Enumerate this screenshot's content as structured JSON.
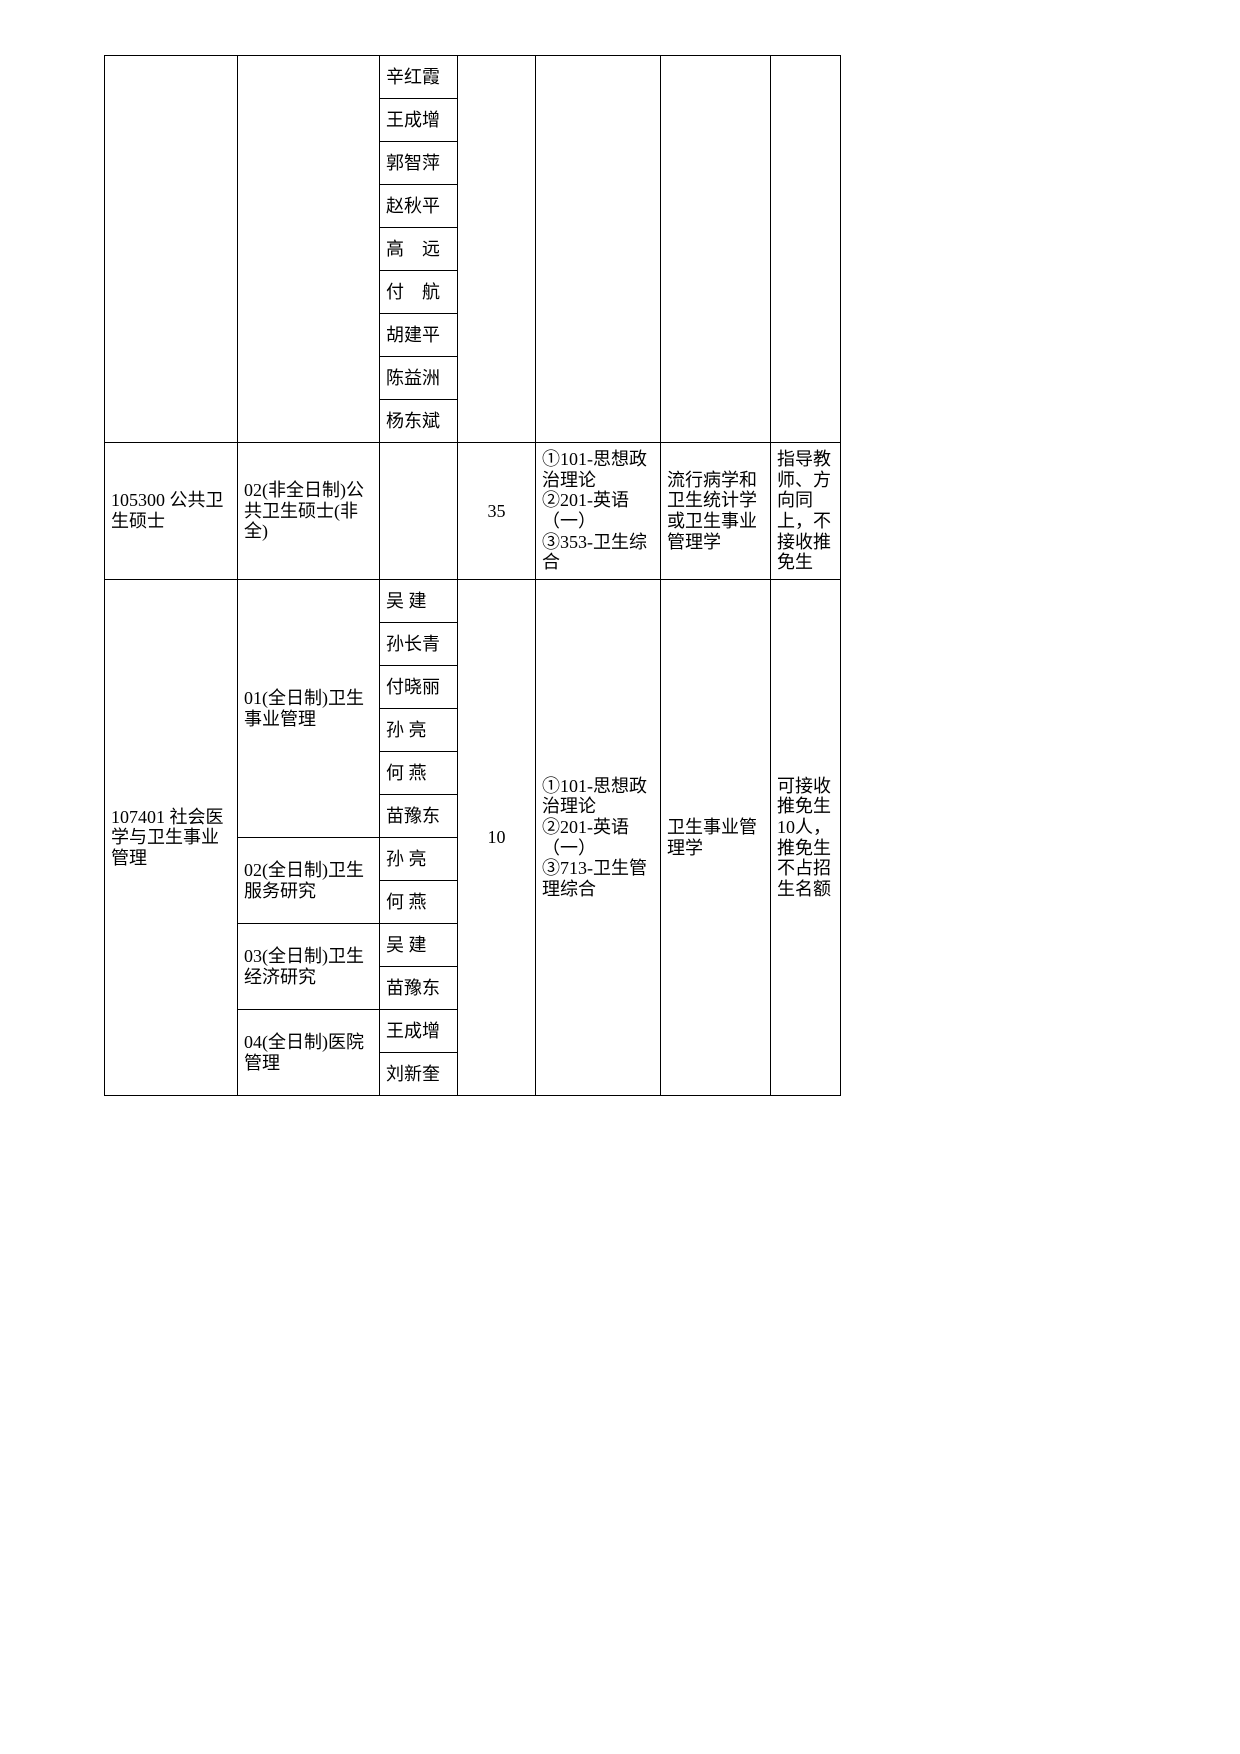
{
  "block0": {
    "names": [
      "辛红霞",
      "王成增",
      "郭智萍",
      "赵秋平",
      "高　远",
      "付　航",
      "胡建平",
      "陈益洲",
      "杨东斌"
    ]
  },
  "row105300": {
    "col1": "105300 公共卫生硕士",
    "col2": "02(非全日制)公共卫生硕士(非全)",
    "col4": "35",
    "col5": "①101-思想政治理论\n②201-英语（一）\n③353-卫生综合",
    "col6": "流行病学和卫生统计学或卫生事业管理学",
    "col7": "指导教师、方向同上，不接收推免生"
  },
  "row107401": {
    "col1": "107401 社会医学与卫生事业管理",
    "dir01": "01(全日制)卫生事业管理",
    "dir01_names": [
      "吴 建",
      "孙长青",
      "付晓丽",
      "孙 亮",
      "何 燕",
      "苗豫东"
    ],
    "dir02": "02(全日制)卫生服务研究",
    "dir02_names": [
      "孙 亮",
      "何 燕"
    ],
    "dir03": "03(全日制)卫生经济研究",
    "dir03_names": [
      "吴 建",
      "苗豫东"
    ],
    "dir04": "04(全日制)医院管理",
    "dir04_names": [
      "王成增",
      "刘新奎"
    ],
    "col4": "10",
    "col5": "①101-思想政治理论\n②201-英语（一）\n③713-卫生管理综合",
    "col6": "卫生事业管理学",
    "col7": "可接收推免生10人，推免生不占招生名额"
  }
}
